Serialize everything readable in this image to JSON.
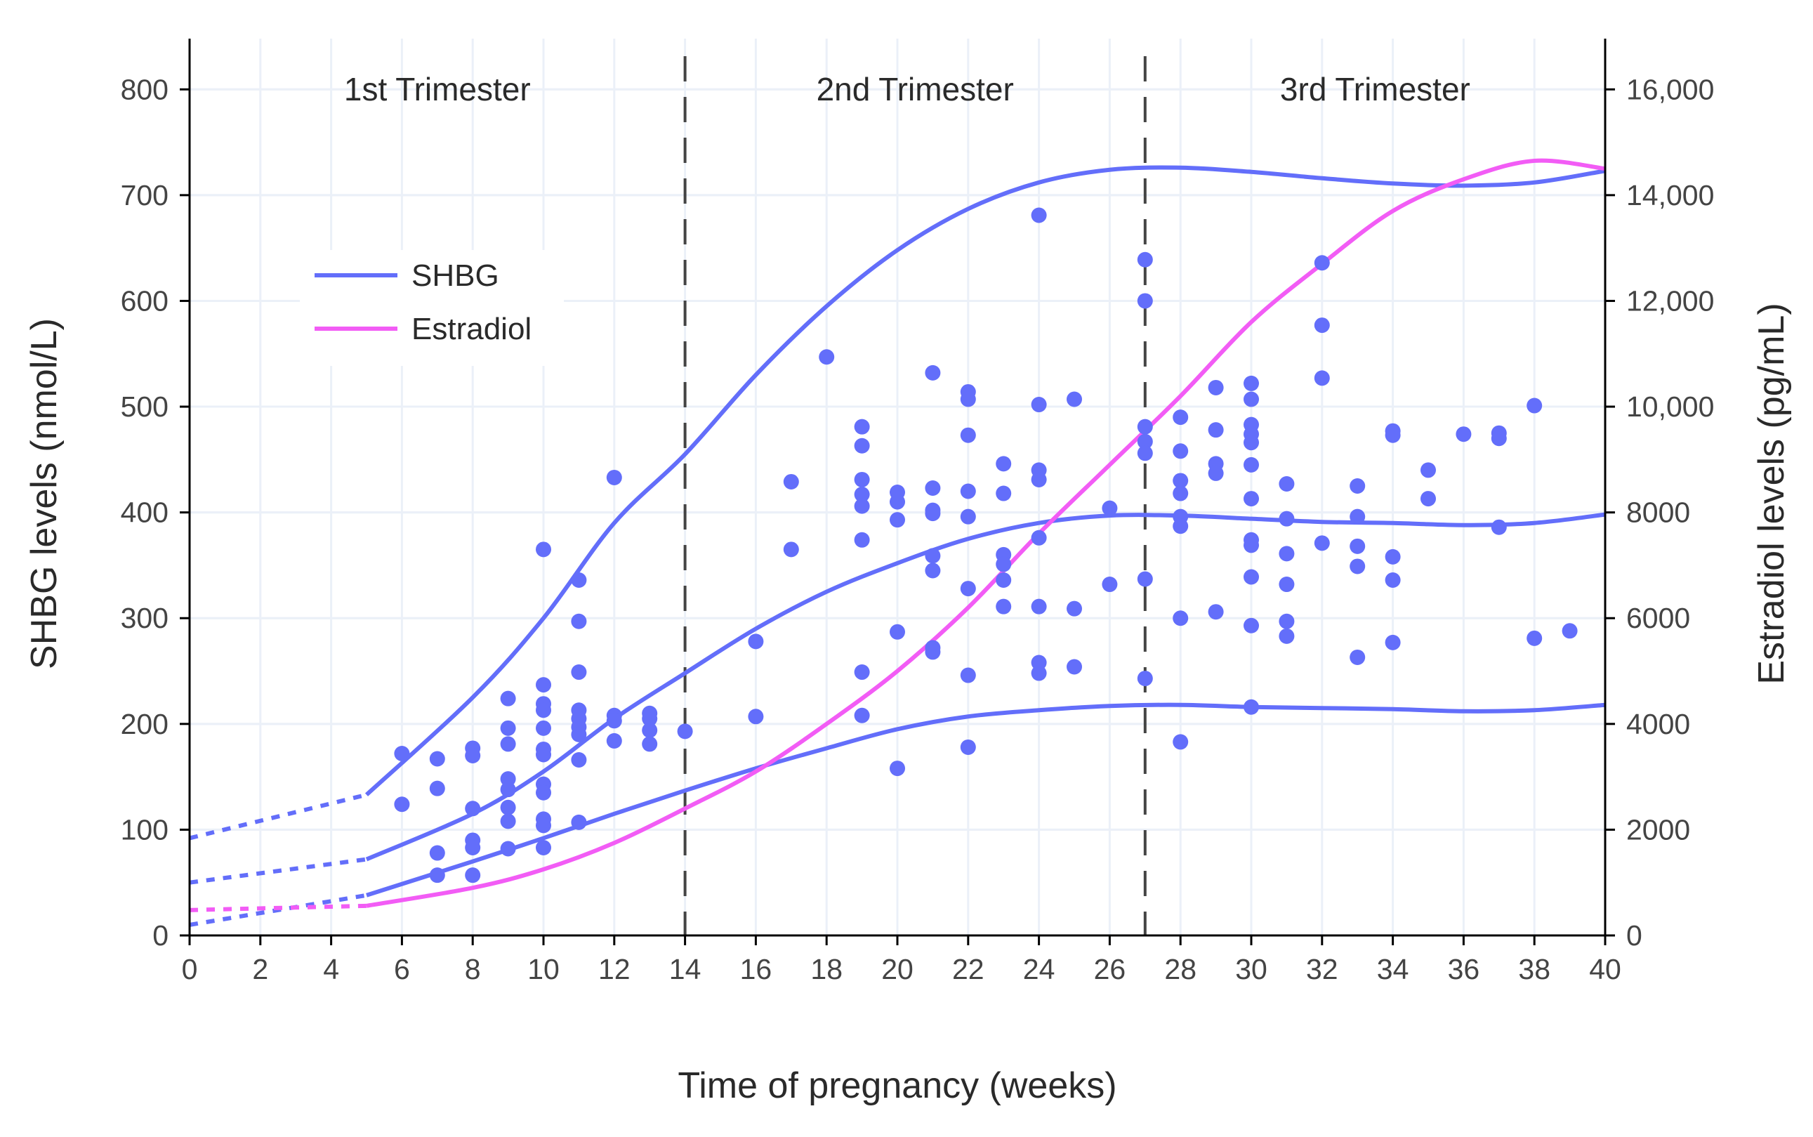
{
  "chart_data": {
    "type": "scatter",
    "xlabel": "Time of pregnancy (weeks)",
    "ylabel": "SHBG levels (nmol/L)",
    "y2label": "Estradiol levels (pg/mL)",
    "xlim": [
      0,
      40
    ],
    "ylim": [
      0,
      848
    ],
    "y2lim": [
      0,
      16960
    ],
    "x_ticks": [
      0,
      2,
      4,
      6,
      8,
      10,
      12,
      14,
      16,
      18,
      20,
      22,
      24,
      26,
      28,
      30,
      32,
      34,
      36,
      38,
      40
    ],
    "y_ticks": [
      0,
      100,
      200,
      300,
      400,
      500,
      600,
      700,
      800
    ],
    "y2_ticks": [
      "0",
      "2000",
      "4000",
      "6000",
      "8000",
      "10,000",
      "12,000",
      "14,000",
      "16,000"
    ],
    "y2_tick_values": [
      0,
      2000,
      4000,
      6000,
      8000,
      10000,
      12000,
      14000,
      16000
    ],
    "grid": true,
    "legend_position": "top-left",
    "trimester_boundaries": [
      14,
      27
    ],
    "annotations": [
      {
        "text": "1st Trimester",
        "x": 7
      },
      {
        "text": "2nd Trimester",
        "x": 20.5
      },
      {
        "text": "3rd Trimester",
        "x": 33.5
      }
    ],
    "colors": {
      "shbg": "#636efa",
      "estradiol": "#f25cf5",
      "grid": "#ebf0f8",
      "divider": "#444444"
    },
    "legend": [
      {
        "name": "SHBG",
        "color": "#636efa"
      },
      {
        "name": "Estradiol",
        "color": "#f25cf5"
      }
    ],
    "shbg_points": [
      [
        6,
        172
      ],
      [
        6,
        124
      ],
      [
        7,
        167
      ],
      [
        7,
        139
      ],
      [
        7,
        78
      ],
      [
        7,
        57
      ],
      [
        8,
        177
      ],
      [
        8,
        170
      ],
      [
        8,
        120
      ],
      [
        8,
        90
      ],
      [
        8,
        83
      ],
      [
        8,
        57
      ],
      [
        9,
        224
      ],
      [
        9,
        196
      ],
      [
        9,
        181
      ],
      [
        9,
        148
      ],
      [
        9,
        138
      ],
      [
        9,
        121
      ],
      [
        9,
        108
      ],
      [
        9,
        82
      ],
      [
        10,
        365
      ],
      [
        10,
        237
      ],
      [
        10,
        219
      ],
      [
        10,
        213
      ],
      [
        10,
        196
      ],
      [
        10,
        176
      ],
      [
        10,
        171
      ],
      [
        10,
        143
      ],
      [
        10,
        135
      ],
      [
        10,
        110
      ],
      [
        10,
        104
      ],
      [
        10,
        83
      ],
      [
        11,
        336
      ],
      [
        11,
        297
      ],
      [
        11,
        249
      ],
      [
        11,
        213
      ],
      [
        11,
        205
      ],
      [
        11,
        197
      ],
      [
        11,
        190
      ],
      [
        11,
        166
      ],
      [
        11,
        107
      ],
      [
        12,
        433
      ],
      [
        12,
        208
      ],
      [
        12,
        203
      ],
      [
        12,
        184
      ],
      [
        13,
        210
      ],
      [
        13,
        205
      ],
      [
        13,
        194
      ],
      [
        13,
        181
      ],
      [
        14,
        193
      ],
      [
        16,
        278
      ],
      [
        16,
        207
      ],
      [
        17,
        429
      ],
      [
        17,
        365
      ],
      [
        18,
        547
      ],
      [
        19,
        481
      ],
      [
        19,
        463
      ],
      [
        19,
        431
      ],
      [
        19,
        417
      ],
      [
        19,
        406
      ],
      [
        19,
        374
      ],
      [
        19,
        249
      ],
      [
        19,
        208
      ],
      [
        20,
        419
      ],
      [
        20,
        410
      ],
      [
        20,
        393
      ],
      [
        20,
        287
      ],
      [
        20,
        158
      ],
      [
        21,
        532
      ],
      [
        21,
        423
      ],
      [
        21,
        402
      ],
      [
        21,
        399
      ],
      [
        21,
        359
      ],
      [
        21,
        345
      ],
      [
        21,
        272
      ],
      [
        21,
        268
      ],
      [
        22,
        514
      ],
      [
        22,
        507
      ],
      [
        22,
        473
      ],
      [
        22,
        420
      ],
      [
        22,
        396
      ],
      [
        22,
        328
      ],
      [
        22,
        246
      ],
      [
        22,
        178
      ],
      [
        23,
        446
      ],
      [
        23,
        418
      ],
      [
        23,
        360
      ],
      [
        23,
        351
      ],
      [
        23,
        336
      ],
      [
        23,
        311
      ],
      [
        24,
        681
      ],
      [
        24,
        502
      ],
      [
        24,
        440
      ],
      [
        24,
        431
      ],
      [
        24,
        376
      ],
      [
        24,
        311
      ],
      [
        24,
        258
      ],
      [
        24,
        248
      ],
      [
        25,
        507
      ],
      [
        25,
        309
      ],
      [
        25,
        254
      ],
      [
        26,
        404
      ],
      [
        26,
        332
      ],
      [
        27,
        639
      ],
      [
        27,
        600
      ],
      [
        27,
        481
      ],
      [
        27,
        467
      ],
      [
        27,
        456
      ],
      [
        27,
        337
      ],
      [
        27,
        243
      ],
      [
        28,
        490
      ],
      [
        28,
        458
      ],
      [
        28,
        430
      ],
      [
        28,
        418
      ],
      [
        28,
        396
      ],
      [
        28,
        387
      ],
      [
        28,
        300
      ],
      [
        28,
        183
      ],
      [
        29,
        518
      ],
      [
        29,
        478
      ],
      [
        29,
        446
      ],
      [
        29,
        437
      ],
      [
        29,
        306
      ],
      [
        30,
        522
      ],
      [
        30,
        507
      ],
      [
        30,
        483
      ],
      [
        30,
        474
      ],
      [
        30,
        466
      ],
      [
        30,
        445
      ],
      [
        30,
        413
      ],
      [
        30,
        374
      ],
      [
        30,
        369
      ],
      [
        30,
        339
      ],
      [
        30,
        293
      ],
      [
        30,
        216
      ],
      [
        31,
        427
      ],
      [
        31,
        394
      ],
      [
        31,
        361
      ],
      [
        31,
        332
      ],
      [
        31,
        297
      ],
      [
        31,
        283
      ],
      [
        32,
        636
      ],
      [
        32,
        577
      ],
      [
        32,
        527
      ],
      [
        32,
        371
      ],
      [
        33,
        425
      ],
      [
        33,
        396
      ],
      [
        33,
        368
      ],
      [
        33,
        349
      ],
      [
        33,
        263
      ],
      [
        34,
        477
      ],
      [
        34,
        473
      ],
      [
        34,
        358
      ],
      [
        34,
        336
      ],
      [
        34,
        277
      ],
      [
        35,
        440
      ],
      [
        35,
        413
      ],
      [
        36,
        474
      ],
      [
        37,
        475
      ],
      [
        37,
        470
      ],
      [
        37,
        386
      ],
      [
        38,
        501
      ],
      [
        38,
        281
      ],
      [
        39,
        288
      ]
    ],
    "series": [
      {
        "name": "SHBG",
        "axis": "left",
        "role": "upper",
        "x": [
          0,
          5,
          8,
          10,
          12,
          14,
          16,
          18,
          20,
          22,
          24,
          26,
          28,
          30,
          32,
          34,
          36,
          38,
          40
        ],
        "y": [
          92,
          133,
          225,
          300,
          390,
          455,
          530,
          595,
          648,
          687,
          712,
          724,
          726,
          722,
          716,
          711,
          709,
          712,
          723
        ]
      },
      {
        "name": "SHBG",
        "axis": "left",
        "role": "median",
        "x": [
          0,
          5,
          8,
          10,
          12,
          14,
          16,
          18,
          20,
          22,
          24,
          26,
          28,
          30,
          32,
          34,
          36,
          38,
          40
        ],
        "y": [
          50,
          72,
          115,
          155,
          205,
          248,
          290,
          325,
          352,
          375,
          390,
          397,
          397,
          394,
          391,
          390,
          388,
          390,
          398
        ]
      },
      {
        "name": "SHBG",
        "axis": "left",
        "role": "lower",
        "x": [
          0,
          5,
          8,
          10,
          12,
          14,
          16,
          18,
          20,
          22,
          24,
          26,
          28,
          30,
          32,
          34,
          36,
          38,
          40
        ],
        "y": [
          10,
          38,
          70,
          92,
          115,
          137,
          158,
          177,
          195,
          207,
          213,
          217,
          218,
          216,
          215,
          214,
          212,
          213,
          218
        ]
      },
      {
        "name": "Estradiol",
        "axis": "right",
        "x": [
          0,
          5,
          8,
          10,
          12,
          14,
          16,
          18,
          20,
          22,
          24,
          26,
          28,
          30,
          32,
          34,
          36,
          38,
          40
        ],
        "y": [
          480,
          560,
          900,
          1250,
          1750,
          2400,
          3100,
          4000,
          5000,
          6200,
          7600,
          8900,
          10200,
          11600,
          12700,
          13700,
          14300,
          14650,
          14500
        ]
      }
    ],
    "dotted_until_x": 5
  }
}
